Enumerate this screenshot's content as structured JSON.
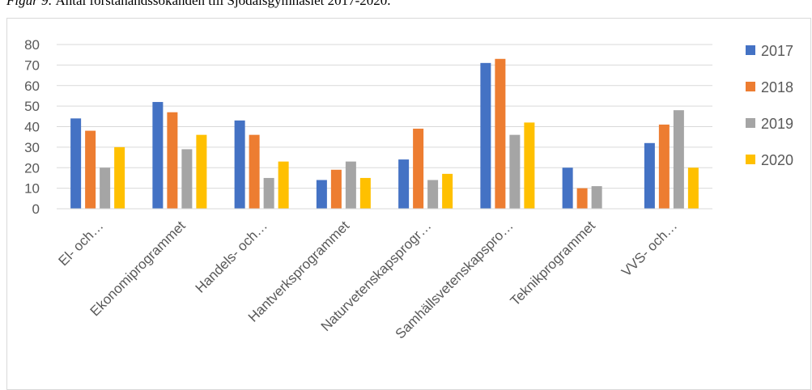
{
  "caption": {
    "figure_label": "Figur 9",
    "text": "Antal förstahandssökanden till Sjödalsgymnasiet 2017-2020."
  },
  "chart_data": {
    "type": "bar",
    "title": "",
    "xlabel": "",
    "ylabel": "",
    "categories": [
      "El- och…",
      "Ekonomiprogrammet",
      "Handels- och…",
      "Hantverksprogrammet",
      "Naturvetenskapsprogr…",
      "Samhällsvetenskapspro…",
      "Teknikprogrammet",
      "VVS- och…"
    ],
    "ylim": [
      0,
      80
    ],
    "yticks": [
      0,
      10,
      20,
      30,
      40,
      50,
      60,
      70,
      80
    ],
    "grid": true,
    "legend_position": "right",
    "series": [
      {
        "name": "2017",
        "color": "#4472C4",
        "values": [
          44,
          52,
          43,
          14,
          24,
          71,
          20,
          32
        ]
      },
      {
        "name": "2018",
        "color": "#ED7D31",
        "values": [
          38,
          47,
          36,
          19,
          39,
          73,
          10,
          41
        ]
      },
      {
        "name": "2019",
        "color": "#A5A5A5",
        "values": [
          20,
          29,
          15,
          23,
          14,
          36,
          11,
          48
        ]
      },
      {
        "name": "2020",
        "color": "#FFC000",
        "values": [
          30,
          36,
          23,
          15,
          17,
          42,
          0,
          20
        ]
      }
    ]
  }
}
